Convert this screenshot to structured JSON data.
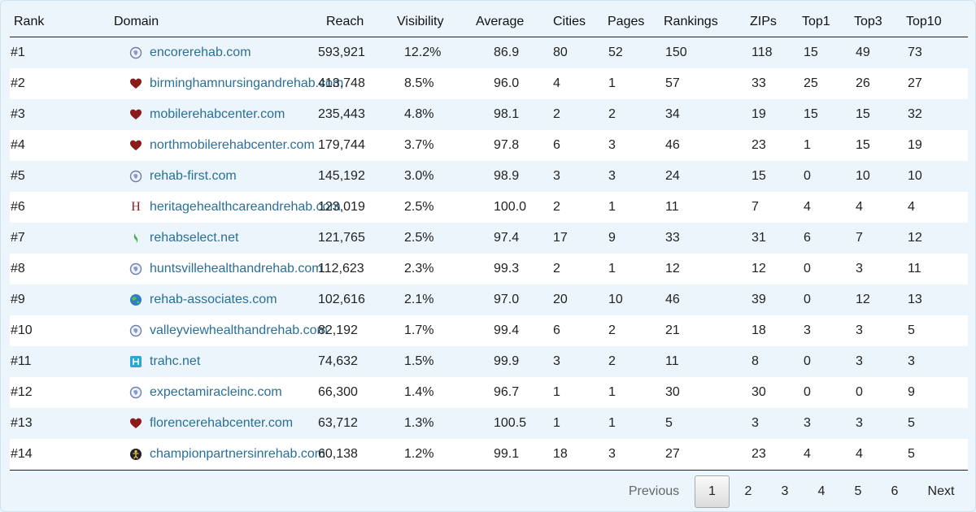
{
  "columns": [
    "Rank",
    "Domain",
    "Reach",
    "Visibility",
    "Average",
    "Cities",
    "Pages",
    "Rankings",
    "ZIPs",
    "Top1",
    "Top3",
    "Top10"
  ],
  "rows": [
    {
      "rank": "#1",
      "icon": "globe-icon",
      "domain": "encorerehab.com",
      "reach": "593,921",
      "visibility": "12.2%",
      "average": "86.9",
      "cities": "80",
      "pages": "52",
      "rankings": "150",
      "zips": "118",
      "top1": "15",
      "top3": "49",
      "top10": "73"
    },
    {
      "rank": "#2",
      "icon": "heart-icon",
      "domain": "birminghamnursingandrehab.com",
      "reach": "413,748",
      "visibility": "8.5%",
      "average": "96.0",
      "cities": "4",
      "pages": "1",
      "rankings": "57",
      "zips": "33",
      "top1": "25",
      "top3": "26",
      "top10": "27"
    },
    {
      "rank": "#3",
      "icon": "heart-icon",
      "domain": "mobilerehabcenter.com",
      "reach": "235,443",
      "visibility": "4.8%",
      "average": "98.1",
      "cities": "2",
      "pages": "2",
      "rankings": "34",
      "zips": "19",
      "top1": "15",
      "top3": "15",
      "top10": "32"
    },
    {
      "rank": "#4",
      "icon": "heart-icon",
      "domain": "northmobilerehabcenter.com",
      "reach": "179,744",
      "visibility": "3.7%",
      "average": "97.8",
      "cities": "6",
      "pages": "3",
      "rankings": "46",
      "zips": "23",
      "top1": "1",
      "top3": "15",
      "top10": "19"
    },
    {
      "rank": "#5",
      "icon": "globe-icon",
      "domain": "rehab-first.com",
      "reach": "145,192",
      "visibility": "3.0%",
      "average": "98.9",
      "cities": "3",
      "pages": "3",
      "rankings": "24",
      "zips": "15",
      "top1": "0",
      "top3": "10",
      "top10": "10"
    },
    {
      "rank": "#6",
      "icon": "letter-h-icon",
      "domain": "heritagehealthcareandrehab.com",
      "reach": "123,019",
      "visibility": "2.5%",
      "average": "100.0",
      "cities": "2",
      "pages": "1",
      "rankings": "11",
      "zips": "7",
      "top1": "4",
      "top3": "4",
      "top10": "4"
    },
    {
      "rank": "#7",
      "icon": "leaf-icon",
      "domain": "rehabselect.net",
      "reach": "121,765",
      "visibility": "2.5%",
      "average": "97.4",
      "cities": "17",
      "pages": "9",
      "rankings": "33",
      "zips": "31",
      "top1": "6",
      "top3": "7",
      "top10": "12"
    },
    {
      "rank": "#8",
      "icon": "globe-icon",
      "domain": "huntsvillehealthandrehab.com",
      "reach": "112,623",
      "visibility": "2.3%",
      "average": "99.3",
      "cities": "2",
      "pages": "1",
      "rankings": "12",
      "zips": "12",
      "top1": "0",
      "top3": "3",
      "top10": "11"
    },
    {
      "rank": "#9",
      "icon": "earth-icon",
      "domain": "rehab-associates.com",
      "reach": "102,616",
      "visibility": "2.1%",
      "average": "97.0",
      "cities": "20",
      "pages": "10",
      "rankings": "46",
      "zips": "39",
      "top1": "0",
      "top3": "12",
      "top10": "13"
    },
    {
      "rank": "#10",
      "icon": "globe-icon",
      "domain": "valleyviewhealthandrehab.com",
      "reach": "82,192",
      "visibility": "1.7%",
      "average": "99.4",
      "cities": "6",
      "pages": "2",
      "rankings": "21",
      "zips": "18",
      "top1": "3",
      "top3": "3",
      "top10": "5"
    },
    {
      "rank": "#11",
      "icon": "square-logo-icon",
      "domain": "trahc.net",
      "reach": "74,632",
      "visibility": "1.5%",
      "average": "99.9",
      "cities": "3",
      "pages": "2",
      "rankings": "11",
      "zips": "8",
      "top1": "0",
      "top3": "3",
      "top10": "3"
    },
    {
      "rank": "#12",
      "icon": "globe-icon",
      "domain": "expectamiracleinc.com",
      "reach": "66,300",
      "visibility": "1.4%",
      "average": "96.7",
      "cities": "1",
      "pages": "1",
      "rankings": "30",
      "zips": "30",
      "top1": "0",
      "top3": "0",
      "top10": "9"
    },
    {
      "rank": "#13",
      "icon": "heart-icon",
      "domain": "florencerehabcenter.com",
      "reach": "63,712",
      "visibility": "1.3%",
      "average": "100.5",
      "cities": "1",
      "pages": "1",
      "rankings": "5",
      "zips": "3",
      "top1": "3",
      "top3": "3",
      "top10": "5"
    },
    {
      "rank": "#14",
      "icon": "figure-icon",
      "domain": "championpartnersinrehab.com",
      "reach": "60,138",
      "visibility": "1.2%",
      "average": "99.1",
      "cities": "18",
      "pages": "3",
      "rankings": "27",
      "zips": "23",
      "top1": "4",
      "top3": "4",
      "top10": "5"
    }
  ],
  "pagination": {
    "previous_label": "Previous",
    "pages": [
      "1",
      "2",
      "3",
      "4",
      "5",
      "6"
    ],
    "current": "1",
    "next_label": "Next"
  },
  "colors": {
    "link": "#2a6f97",
    "stripe": "#ebf5fb",
    "heart": "#8b1a1a",
    "h_letter": "#8b1f2e",
    "square_logo": "#2aa7d9",
    "leaf": "#4caf50"
  }
}
